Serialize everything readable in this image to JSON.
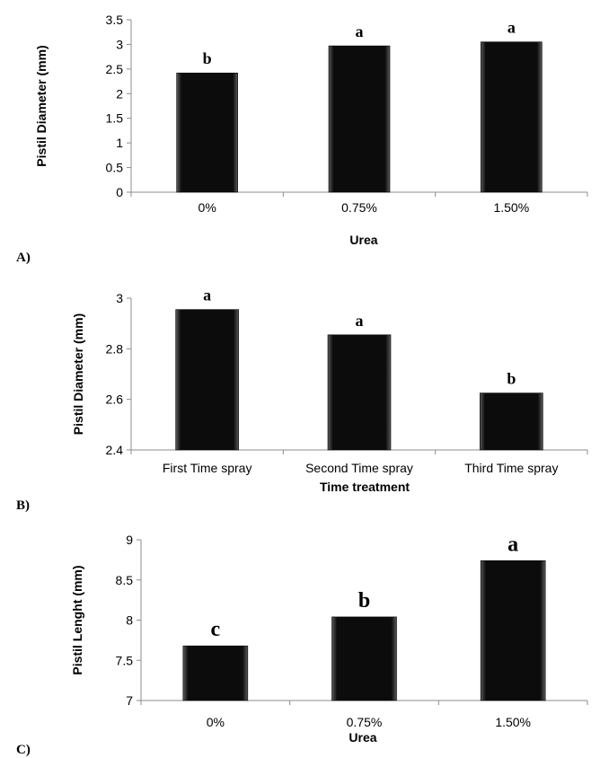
{
  "chart_data": [
    {
      "type": "bar",
      "panel_label": "A)",
      "categories": [
        "0%",
        "0.75%",
        "1.50%"
      ],
      "values": [
        2.42,
        2.97,
        3.05
      ],
      "significance": [
        "b",
        "a",
        "a"
      ],
      "xlabel": "Urea",
      "ylabel": "Pistil Diameter (mm)",
      "ylim": [
        0,
        3.5
      ],
      "yticks": [
        "0",
        "0.5",
        "1",
        "1.5",
        "2",
        "2.5",
        "3",
        "3.5"
      ],
      "grid": false,
      "bar_color": "#0a0a0a"
    },
    {
      "type": "bar",
      "panel_label": "B)",
      "categories": [
        "First Time spray",
        "Second Time spray",
        "Third Time spray"
      ],
      "values": [
        2.955,
        2.855,
        2.625
      ],
      "significance": [
        "a",
        "a",
        "b"
      ],
      "xlabel": "Time treatment",
      "ylabel": "Pistil  Diameter (mm)",
      "ylim": [
        2.4,
        3.0
      ],
      "yticks": [
        "2.4",
        "2.6",
        "2.8",
        "3"
      ],
      "grid": false,
      "bar_color": "#0a0a0a"
    },
    {
      "type": "bar",
      "panel_label": "C)",
      "categories": [
        "0%",
        "0.75%",
        "1.50%"
      ],
      "values": [
        7.68,
        8.04,
        8.74
      ],
      "significance": [
        "c",
        "b",
        "a"
      ],
      "xlabel": "Urea",
      "ylabel": "Pistil Lenght (mm)",
      "ylim": [
        7,
        9
      ],
      "yticks": [
        "7",
        "7.5",
        "8",
        "8.5",
        "9"
      ],
      "grid": false,
      "bar_color": "#0a0a0a"
    }
  ]
}
